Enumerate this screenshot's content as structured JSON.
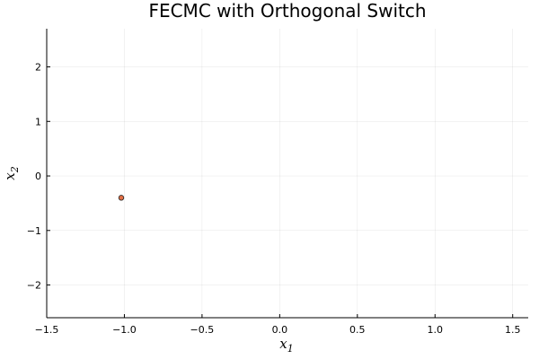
{
  "chart_data": {
    "type": "scatter",
    "title": "FECMC with Orthogonal Switch",
    "xlabel": {
      "base": "x",
      "sub": "1"
    },
    "ylabel": {
      "base": "x",
      "sub": "2"
    },
    "xlim": [
      -1.5,
      1.6
    ],
    "ylim": [
      -2.6,
      2.7
    ],
    "xticks": [
      -1.5,
      -1.0,
      -0.5,
      0.0,
      0.5,
      1.0,
      1.5
    ],
    "xtick_labels": [
      "−1.5",
      "−1.0",
      "−0.5",
      "0.0",
      "0.5",
      "1.0",
      "1.5"
    ],
    "yticks": [
      -2,
      -1,
      0,
      1,
      2
    ],
    "ytick_labels": [
      "−2",
      "−1",
      "0",
      "1",
      "2"
    ],
    "grid": true,
    "legend": "none",
    "series": [
      {
        "x": [
          -1.02
        ],
        "y": [
          -0.4
        ],
        "color": "#e26f46",
        "edge_color": "#222222"
      }
    ]
  }
}
